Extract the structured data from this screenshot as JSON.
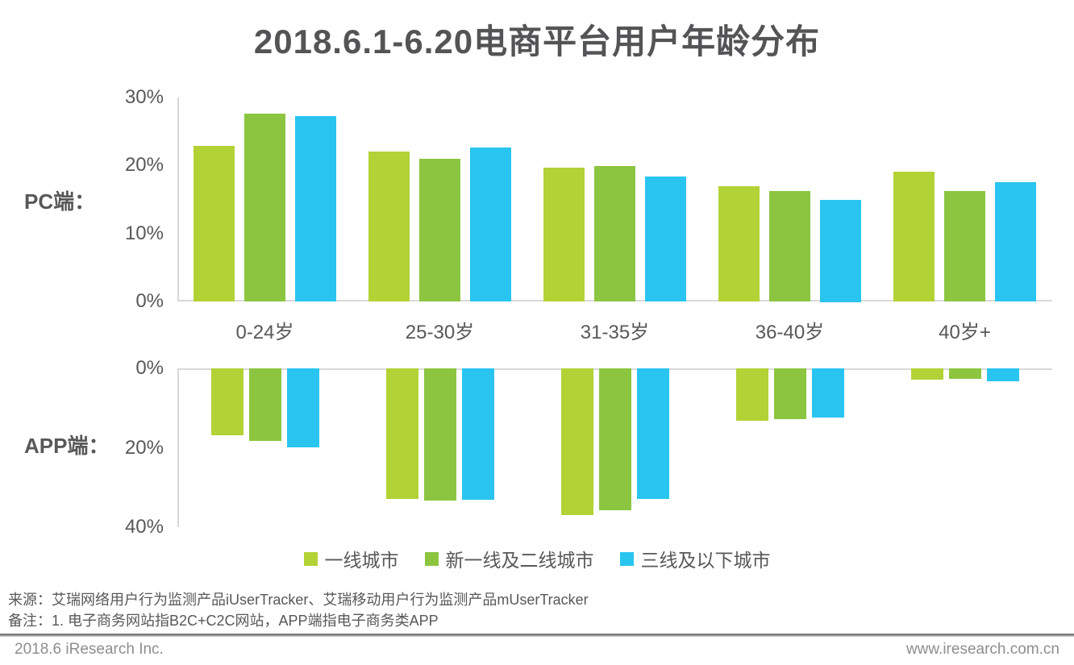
{
  "title": "2018.6.1-6.20电商平台用户年龄分布",
  "chart_data": {
    "type": "bar",
    "title": "2018.6.1-6.20电商平台用户年龄分布",
    "categories": [
      "0-24岁",
      "25-30岁",
      "31-35岁",
      "36-40岁",
      "40岁+"
    ],
    "legend_position": "bottom",
    "grid": false,
    "unit": "%",
    "legend": [
      {
        "label": "一线城市",
        "color": "#b2d235"
      },
      {
        "label": "新一线及二线城市",
        "color": "#8cc540"
      },
      {
        "label": "三线及以下城市",
        "color": "#29c5f0"
      }
    ],
    "charts": [
      {
        "id": "pc",
        "side_label": "PC端：",
        "direction": "up",
        "ylabel_ticks": [
          "30%",
          "20%",
          "10%",
          "0%"
        ],
        "ylim": [
          0,
          30
        ],
        "series": [
          {
            "name": "一线城市",
            "color": "#b2d235",
            "values": [
              22.9,
              22.0,
              19.7,
              17.0,
              19.1
            ]
          },
          {
            "name": "新一线及二线城市",
            "color": "#8cc540",
            "values": [
              27.6,
              21.0,
              19.9,
              16.2,
              16.2
            ]
          },
          {
            "name": "三线及以下城市",
            "color": "#29c5f0",
            "values": [
              27.3,
              22.6,
              18.4,
              15.0,
              17.5
            ]
          }
        ]
      },
      {
        "id": "app",
        "side_label": "APP端：",
        "direction": "down",
        "ylabel_ticks": [
          "0%",
          "20%",
          "40%"
        ],
        "ylim": [
          0,
          40
        ],
        "series": [
          {
            "name": "一线城市",
            "color": "#b2d235",
            "values": [
              16.9,
              32.8,
              37.0,
              13.2,
              2.8
            ]
          },
          {
            "name": "新一线及二线城市",
            "color": "#8cc540",
            "values": [
              18.2,
              33.2,
              35.8,
              12.8,
              2.6
            ]
          },
          {
            "name": "三线及以下城市",
            "color": "#29c5f0",
            "values": [
              19.9,
              33.1,
              32.9,
              12.4,
              3.2
            ]
          }
        ]
      }
    ]
  },
  "footer": {
    "source": "来源：艾瑞网络用户行为监测产品iUserTracker、艾瑞移动用户行为监测产品mUserTracker",
    "note": "备注：1. 电子商务网站指B2C+C2C网站，APP端指电子商务类APP",
    "left": "2018.6 iResearch Inc.",
    "right": "www.iresearch.com.cn"
  }
}
